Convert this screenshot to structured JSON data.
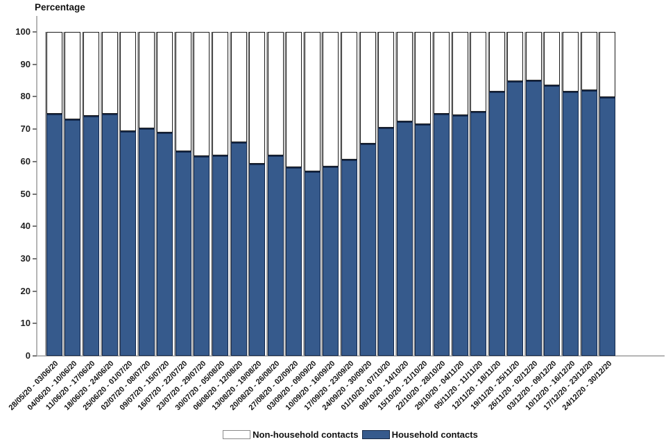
{
  "chart_data": {
    "type": "bar",
    "stacked": true,
    "title": "Percentage",
    "ylabel": "Percentage",
    "xlabel": "",
    "ylim": [
      0,
      100
    ],
    "yticks": [
      0,
      10,
      20,
      30,
      40,
      50,
      60,
      70,
      80,
      90,
      100
    ],
    "grid": false,
    "legend_position": "bottom",
    "categories": [
      "28/05/20 - 03/06/20",
      "04/06/20 - 10/06/20",
      "11/06/20 - 17/06/20",
      "18/06/20 - 24/06/20",
      "25/06/20 - 01/07/20",
      "02/07/20 - 08/07/20",
      "09/07/20 - 15/07/20",
      "16/07/20 - 22/07/20",
      "23/07/20 - 29/07/20",
      "30/07/20 - 05/08/20",
      "06/08/20 - 12/08/20",
      "13/08/20 - 19/08/20",
      "20/08/20 - 26/08/20",
      "27/08/20 - 02/09/20",
      "03/09/20 - 09/09/20",
      "10/09/20 - 16/09/20",
      "17/09/20 - 23/09/20",
      "24/09/20 - 30/09/20",
      "01/10/20 - 07/10/20",
      "08/10/20 - 14/10/20",
      "15/10/20 - 21/10/20",
      "22/10/20 - 28/10/20",
      "29/10/20 - 04/11/20",
      "05/11/20 - 11/11/20",
      "12/11/20 - 18/11/20",
      "19/11/20 - 25/11/20",
      "26/11/20 - 02/12/20",
      "03/12/20 - 09/12/20",
      "10/12/20 - 16/12/20",
      "17/12/20 - 23/12/20",
      "24/12/20 - 30/12/20"
    ],
    "series": [
      {
        "name": "Non-household contacts",
        "color": "#ffffff",
        "values": [
          25.2,
          26.9,
          26.0,
          25.2,
          30.6,
          29.8,
          31.0,
          36.9,
          38.3,
          38.2,
          34.1,
          40.6,
          38.2,
          41.8,
          43.0,
          41.6,
          39.3,
          34.4,
          29.6,
          27.7,
          28.4,
          25.3,
          25.7,
          24.6,
          18.5,
          15.3,
          15.0,
          16.4,
          18.4,
          18.0,
          20.1
        ]
      },
      {
        "name": "Household contacts",
        "color": "#365A8C",
        "values": [
          74.8,
          73.1,
          74.0,
          74.8,
          69.4,
          70.2,
          69.0,
          63.1,
          61.7,
          61.8,
          65.9,
          59.4,
          61.8,
          58.2,
          57.0,
          58.4,
          60.7,
          65.6,
          70.4,
          72.3,
          71.6,
          74.7,
          74.3,
          75.4,
          81.5,
          84.7,
          85.0,
          83.6,
          81.6,
          82.0,
          79.9
        ]
      }
    ]
  },
  "colors": {
    "household_fill": "#365A8C",
    "household_border": "#14284a",
    "non_household_fill": "#ffffff",
    "bar_border": "#1a1a1a",
    "axis_line": "#b5b5b5",
    "text": "#111111"
  }
}
